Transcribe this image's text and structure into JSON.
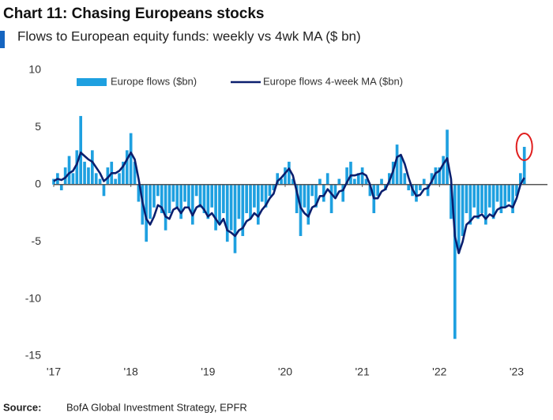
{
  "chart_data": {
    "type": "bar-line",
    "title": "Chart 11: Chasing Europeans stocks",
    "subtitle": "Flows to European equity funds: weekly vs 4wk MA ($ bn)",
    "source": {
      "label": "Source:",
      "text": "BofA Global Investment Strategy, EPFR"
    },
    "xlim": [
      2017,
      2023.4
    ],
    "ylim": [
      -15,
      10
    ],
    "xticks": [
      {
        "value": 2017,
        "label": "'17"
      },
      {
        "value": 2018,
        "label": "'18"
      },
      {
        "value": 2019,
        "label": "'19"
      },
      {
        "value": 2020,
        "label": "'20"
      },
      {
        "value": 2021,
        "label": "'21"
      },
      {
        "value": 2022,
        "label": "'22"
      },
      {
        "value": 2023,
        "label": "'23"
      }
    ],
    "yticks": [
      10,
      5,
      0,
      -5,
      -10,
      -15
    ],
    "grid": false,
    "legend": "top",
    "x": [
      2017,
      2017.05,
      2017.1,
      2017.15,
      2017.2,
      2017.25,
      2017.3,
      2017.35,
      2017.4,
      2017.45,
      2017.5,
      2017.55,
      2017.6,
      2017.65,
      2017.7,
      2017.75,
      2017.8,
      2017.85,
      2017.9,
      2017.95,
      2018,
      2018.05,
      2018.1,
      2018.15,
      2018.2,
      2018.25,
      2018.3,
      2018.35,
      2018.4,
      2018.45,
      2018.5,
      2018.55,
      2018.6,
      2018.65,
      2018.7,
      2018.75,
      2018.8,
      2018.85,
      2018.9,
      2018.95,
      2019,
      2019.05,
      2019.1,
      2019.15,
      2019.2,
      2019.25,
      2019.3,
      2019.35,
      2019.4,
      2019.45,
      2019.5,
      2019.55,
      2019.6,
      2019.65,
      2019.7,
      2019.75,
      2019.8,
      2019.85,
      2019.9,
      2019.95,
      2020,
      2020.05,
      2020.1,
      2020.15,
      2020.2,
      2020.25,
      2020.3,
      2020.35,
      2020.4,
      2020.45,
      2020.5,
      2020.55,
      2020.6,
      2020.65,
      2020.7,
      2020.75,
      2020.8,
      2020.85,
      2020.9,
      2020.95,
      2021,
      2021.05,
      2021.1,
      2021.15,
      2021.2,
      2021.25,
      2021.3,
      2021.35,
      2021.4,
      2021.45,
      2021.5,
      2021.55,
      2021.6,
      2021.65,
      2021.7,
      2021.75,
      2021.8,
      2021.85,
      2021.9,
      2021.95,
      2022,
      2022.05,
      2022.1,
      2022.15,
      2022.2,
      2022.25,
      2022.3,
      2022.35,
      2022.4,
      2022.45,
      2022.5,
      2022.55,
      2022.6,
      2022.65,
      2022.7,
      2022.75,
      2022.8,
      2022.85,
      2022.9,
      2022.95,
      2023,
      2023.05,
      2023.1
    ],
    "series": [
      {
        "name": "Europe flows ($bn)",
        "type": "bar",
        "color": "#1ea0e0",
        "values": [
          0.5,
          1.0,
          -0.5,
          1.5,
          2.5,
          1.0,
          3.0,
          6.0,
          2.0,
          1.5,
          3.0,
          1.0,
          0.5,
          -1.0,
          1.5,
          2.0,
          0.5,
          1.0,
          2.0,
          3.0,
          4.5,
          2.0,
          -1.5,
          -3.5,
          -5.0,
          -3.0,
          -2.0,
          -1.0,
          -2.5,
          -4.0,
          -2.5,
          -1.5,
          -2.0,
          -3.0,
          -1.5,
          -2.0,
          -3.5,
          -1.0,
          -2.0,
          -2.5,
          -3.0,
          -2.0,
          -4.0,
          -3.5,
          -2.5,
          -5.0,
          -4.0,
          -6.0,
          -3.0,
          -4.5,
          -2.5,
          -3.0,
          -2.0,
          -3.5,
          -1.5,
          -2.0,
          -1.0,
          -0.5,
          1.0,
          0.5,
          1.5,
          2.0,
          0.5,
          -2.5,
          -4.5,
          -2.0,
          -3.5,
          -1.0,
          -2.0,
          0.5,
          -1.5,
          1.0,
          -2.5,
          -1.0,
          0.5,
          -1.5,
          1.5,
          2.0,
          0.5,
          1.0,
          1.5,
          0.5,
          -1.0,
          -2.5,
          -1.0,
          0.5,
          -0.5,
          1.0,
          2.0,
          3.5,
          2.5,
          1.0,
          -0.5,
          -1.0,
          -1.5,
          -0.5,
          0.5,
          -1.0,
          1.0,
          1.5,
          1.5,
          2.5,
          4.8,
          -3.0,
          -13.5,
          -6.0,
          -4.5,
          -2.5,
          -3.5,
          -2.0,
          -3.0,
          -2.5,
          -3.5,
          -2.0,
          -3.0,
          -1.5,
          -2.5,
          -2.0,
          -1.5,
          -2.5,
          -1.0,
          1.0,
          3.3
        ]
      },
      {
        "name": "Europe flows 4-week MA ($bn)",
        "type": "line",
        "color": "#0b1f6e",
        "values": [
          0.3,
          0.5,
          0.4,
          0.6,
          1.0,
          1.2,
          1.8,
          2.8,
          2.5,
          2.2,
          2.0,
          1.5,
          1.0,
          0.3,
          0.6,
          1.0,
          1.0,
          1.2,
          1.6,
          2.2,
          2.8,
          2.2,
          0.5,
          -1.5,
          -3.0,
          -3.5,
          -2.8,
          -1.8,
          -2.0,
          -2.8,
          -3.0,
          -2.2,
          -2.0,
          -2.5,
          -2.0,
          -2.0,
          -2.7,
          -2.0,
          -1.8,
          -2.2,
          -2.8,
          -2.5,
          -3.0,
          -3.5,
          -3.0,
          -4.0,
          -4.2,
          -4.5,
          -4.0,
          -3.8,
          -3.2,
          -3.0,
          -2.5,
          -2.8,
          -2.2,
          -1.8,
          -1.2,
          -0.8,
          0.3,
          0.6,
          1.0,
          1.4,
          0.8,
          -0.6,
          -2.0,
          -2.5,
          -2.8,
          -2.0,
          -1.8,
          -1.0,
          -1.0,
          -0.4,
          -0.8,
          -1.2,
          -0.6,
          -0.5,
          0.2,
          0.8,
          0.8,
          0.9,
          1.0,
          0.8,
          0.0,
          -1.2,
          -1.2,
          -0.6,
          -0.4,
          0.3,
          1.2,
          2.4,
          2.6,
          1.8,
          0.6,
          -0.4,
          -1.0,
          -0.9,
          -0.4,
          -0.3,
          0.3,
          1.0,
          1.2,
          1.8,
          2.3,
          0.5,
          -4.5,
          -6.0,
          -5.0,
          -3.5,
          -3.2,
          -2.8,
          -2.8,
          -2.6,
          -3.0,
          -2.6,
          -2.8,
          -2.2,
          -2.0,
          -2.0,
          -1.8,
          -2.0,
          -1.2,
          0.0,
          0.6
        ]
      }
    ]
  }
}
